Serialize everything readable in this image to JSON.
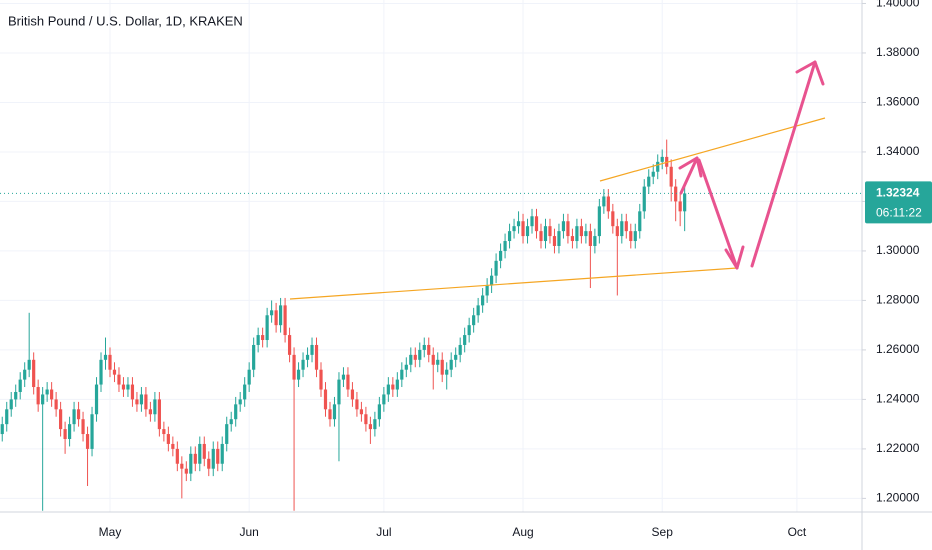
{
  "chart_data": {
    "type": "candlestick",
    "title": "British Pound / U.S. Dollar, 1D, KRAKEN",
    "countdown": "06:11:22",
    "up_color": "#26a69a",
    "down_color": "#ef5350",
    "grid": true,
    "ylim": [
      1.1945,
      1.4014
    ],
    "yticks": [
      {
        "value": 1.2,
        "label": "1.20000"
      },
      {
        "value": 1.22,
        "label": "1.22000"
      },
      {
        "value": 1.24,
        "label": "1.24000"
      },
      {
        "value": 1.26,
        "label": "1.26000"
      },
      {
        "value": 1.28,
        "label": "1.28000"
      },
      {
        "value": 1.3,
        "label": "1.30000"
      },
      {
        "value": 1.32,
        "label": "1.32000"
      },
      {
        "value": 1.34,
        "label": "1.34000"
      },
      {
        "value": 1.36,
        "label": "1.36000"
      },
      {
        "value": 1.38,
        "label": "1.38000"
      },
      {
        "value": 1.4,
        "label": "1.40000"
      }
    ],
    "categories": [
      null,
      null,
      null,
      null,
      null,
      null,
      null,
      null,
      null,
      null,
      null,
      null,
      null,
      null,
      null,
      null,
      null,
      null,
      null,
      null,
      null,
      null,
      null,
      null,
      "May",
      null,
      null,
      null,
      null,
      null,
      null,
      null,
      null,
      null,
      null,
      null,
      null,
      null,
      null,
      null,
      null,
      null,
      null,
      null,
      null,
      null,
      null,
      null,
      null,
      null,
      null,
      null,
      null,
      null,
      null,
      "Jun",
      null,
      null,
      null,
      null,
      null,
      null,
      null,
      null,
      null,
      null,
      null,
      null,
      null,
      null,
      null,
      null,
      null,
      null,
      null,
      null,
      null,
      null,
      null,
      null,
      null,
      null,
      null,
      null,
      null,
      "Jul",
      null,
      null,
      null,
      null,
      null,
      null,
      null,
      null,
      null,
      null,
      null,
      null,
      null,
      null,
      null,
      null,
      null,
      null,
      null,
      null,
      null,
      null,
      null,
      null,
      null,
      null,
      null,
      null,
      null,
      null,
      "Aug",
      null,
      null,
      null,
      null,
      null,
      null,
      null,
      null,
      null,
      null,
      null,
      null,
      null,
      null,
      null,
      null,
      null,
      null,
      null,
      null,
      null,
      null,
      null,
      null,
      null,
      null,
      null,
      null,
      null,
      null,
      "Sep",
      null,
      null,
      null,
      null,
      null,
      null,
      null,
      null,
      null,
      null,
      null,
      null,
      null,
      null,
      null,
      null,
      null,
      null,
      null,
      null,
      null,
      null,
      null,
      null,
      null,
      null,
      null,
      null,
      null,
      "Oct",
      null,
      null,
      null,
      null,
      null,
      null,
      null,
      null,
      null,
      null,
      null,
      null,
      null,
      null
    ],
    "open": [
      1.226,
      1.23,
      1.236,
      1.24,
      1.243,
      1.248,
      1.252,
      1.256,
      1.245,
      1.238,
      1.242,
      1.244,
      1.24,
      1.236,
      1.228,
      1.224,
      1.23,
      1.236,
      1.232,
      1.226,
      1.22,
      1.234,
      1.246,
      1.256,
      1.258,
      1.252,
      1.25,
      1.246,
      1.244,
      1.246,
      1.24,
      1.238,
      1.242,
      1.236,
      1.234,
      1.24,
      1.228,
      1.226,
      1.222,
      1.22,
      1.214,
      1.212,
      1.21,
      1.218,
      1.214,
      1.222,
      1.216,
      1.212,
      1.22,
      1.214,
      1.222,
      1.23,
      1.232,
      1.238,
      1.24,
      1.246,
      1.252,
      1.262,
      1.266,
      1.264,
      1.274,
      1.276,
      1.27,
      1.278,
      1.266,
      1.258,
      1.248,
      1.252,
      1.256,
      1.258,
      1.262,
      1.252,
      1.244,
      1.236,
      1.232,
      1.238,
      1.248,
      1.25,
      1.244,
      1.24,
      1.236,
      1.234,
      1.23,
      1.228,
      1.232,
      1.238,
      1.242,
      1.246,
      1.244,
      1.248,
      1.252,
      1.254,
      1.258,
      1.256,
      1.26,
      1.262,
      1.258,
      1.254,
      1.256,
      1.25,
      1.252,
      1.256,
      1.258,
      1.262,
      1.266,
      1.27,
      1.274,
      1.278,
      1.282,
      1.286,
      1.29,
      1.296,
      1.3,
      1.304,
      1.308,
      1.31,
      1.312,
      1.306,
      1.31,
      1.314,
      1.308,
      1.304,
      1.31,
      1.306,
      1.302,
      1.308,
      1.312,
      1.306,
      1.304,
      1.31,
      1.306,
      1.308,
      1.302,
      1.306,
      1.318,
      1.322,
      1.316,
      1.31,
      1.306,
      1.312,
      1.308,
      1.304,
      1.308,
      1.316,
      1.326,
      1.33,
      1.332,
      1.336,
      1.338,
      1.334,
      1.326,
      1.32,
      1.316,
      null,
      null,
      null,
      null,
      null,
      null,
      null,
      null,
      null,
      null,
      null,
      null,
      null,
      null,
      null,
      null,
      null,
      null,
      null,
      null,
      null,
      null,
      null,
      null,
      null,
      null,
      null,
      null,
      null,
      null,
      null,
      null,
      null,
      null,
      null,
      null,
      null,
      null,
      null
    ],
    "high": [
      1.233,
      1.239,
      1.243,
      1.246,
      1.251,
      1.255,
      1.275,
      1.259,
      1.248,
      1.245,
      1.247,
      1.247,
      1.243,
      1.239,
      1.231,
      1.233,
      1.239,
      1.239,
      1.235,
      1.229,
      1.237,
      1.249,
      1.259,
      1.265,
      1.261,
      1.255,
      1.253,
      1.249,
      1.249,
      1.249,
      1.243,
      1.245,
      1.245,
      1.239,
      1.243,
      1.243,
      1.231,
      1.229,
      1.225,
      1.223,
      1.217,
      1.215,
      1.221,
      1.221,
      1.225,
      1.225,
      1.219,
      1.223,
      1.223,
      1.225,
      1.233,
      1.235,
      1.241,
      1.243,
      1.249,
      1.255,
      1.265,
      1.269,
      1.269,
      1.277,
      1.28,
      1.279,
      1.281,
      1.281,
      1.269,
      1.261,
      1.255,
      1.259,
      1.261,
      1.265,
      1.265,
      1.255,
      1.247,
      1.239,
      1.241,
      1.251,
      1.253,
      1.253,
      1.247,
      1.243,
      1.239,
      1.237,
      1.233,
      1.235,
      1.241,
      1.245,
      1.249,
      1.249,
      1.251,
      1.255,
      1.257,
      1.261,
      1.261,
      1.263,
      1.265,
      1.265,
      1.261,
      1.259,
      1.259,
      1.255,
      1.259,
      1.261,
      1.265,
      1.269,
      1.273,
      1.277,
      1.281,
      1.285,
      1.289,
      1.293,
      1.299,
      1.303,
      1.307,
      1.311,
      1.313,
      1.316,
      1.315,
      1.313,
      1.317,
      1.317,
      1.311,
      1.313,
      1.313,
      1.309,
      1.311,
      1.315,
      1.315,
      1.309,
      1.313,
      1.313,
      1.311,
      1.311,
      1.309,
      1.321,
      1.325,
      1.325,
      1.319,
      1.313,
      1.315,
      1.315,
      1.311,
      1.311,
      1.319,
      1.329,
      1.333,
      1.335,
      1.339,
      1.341,
      1.345,
      1.337,
      1.329,
      1.323,
      1.326,
      null,
      null,
      null,
      null,
      null,
      null,
      null,
      null,
      null,
      null,
      null,
      null,
      null,
      null,
      null,
      null,
      null,
      null,
      null,
      null,
      null,
      null,
      null,
      null,
      null,
      null,
      null,
      null,
      null,
      null,
      null,
      null,
      null,
      null,
      null,
      null,
      null,
      null,
      null
    ],
    "low": [
      1.223,
      1.227,
      1.233,
      1.237,
      1.24,
      1.245,
      1.249,
      1.242,
      1.235,
      1.195,
      1.239,
      1.237,
      1.233,
      1.225,
      1.218,
      1.221,
      1.227,
      1.229,
      1.223,
      1.205,
      1.217,
      1.231,
      1.243,
      1.252,
      1.249,
      1.247,
      1.243,
      1.241,
      1.241,
      1.237,
      1.235,
      1.235,
      1.233,
      1.231,
      1.231,
      1.225,
      1.223,
      1.219,
      1.217,
      1.211,
      1.2,
      1.207,
      1.207,
      1.211,
      1.211,
      1.213,
      1.209,
      1.209,
      1.211,
      1.211,
      1.219,
      1.227,
      1.229,
      1.235,
      1.237,
      1.243,
      1.249,
      1.259,
      1.261,
      1.261,
      1.271,
      1.267,
      1.267,
      1.263,
      1.255,
      1.195,
      1.245,
      1.249,
      1.253,
      1.255,
      1.249,
      1.241,
      1.233,
      1.229,
      1.229,
      1.215,
      1.245,
      1.241,
      1.237,
      1.233,
      1.231,
      1.227,
      1.222,
      1.225,
      1.229,
      1.235,
      1.239,
      1.241,
      1.241,
      1.245,
      1.249,
      1.251,
      1.253,
      1.253,
      1.257,
      1.255,
      1.244,
      1.251,
      1.247,
      1.244,
      1.249,
      1.253,
      1.255,
      1.259,
      1.263,
      1.267,
      1.271,
      1.275,
      1.279,
      1.283,
      1.287,
      1.293,
      1.297,
      1.301,
      1.305,
      1.307,
      1.303,
      1.303,
      1.307,
      1.305,
      1.301,
      1.301,
      1.303,
      1.299,
      1.299,
      1.305,
      1.303,
      1.301,
      1.301,
      1.303,
      1.303,
      1.285,
      1.299,
      1.303,
      1.315,
      1.313,
      1.307,
      1.282,
      1.303,
      1.305,
      1.301,
      1.301,
      1.305,
      1.313,
      1.323,
      1.327,
      1.329,
      1.333,
      1.331,
      1.32,
      1.312,
      1.31,
      1.308,
      null,
      null,
      null,
      null,
      null,
      null,
      null,
      null,
      null,
      null,
      null,
      null,
      null,
      null,
      null,
      null,
      null,
      null,
      null,
      null,
      null,
      null,
      null,
      null,
      null,
      null,
      null,
      null,
      null,
      null,
      null,
      null,
      null,
      null,
      null,
      null,
      null,
      null,
      null
    ],
    "close": [
      1.23,
      1.236,
      1.24,
      1.243,
      1.248,
      1.252,
      1.256,
      1.245,
      1.238,
      1.242,
      1.244,
      1.24,
      1.236,
      1.228,
      1.224,
      1.23,
      1.236,
      1.232,
      1.226,
      1.22,
      1.234,
      1.246,
      1.256,
      1.258,
      1.252,
      1.25,
      1.246,
      1.244,
      1.246,
      1.24,
      1.238,
      1.242,
      1.236,
      1.234,
      1.24,
      1.228,
      1.226,
      1.222,
      1.22,
      1.214,
      1.212,
      1.21,
      1.218,
      1.214,
      1.222,
      1.216,
      1.212,
      1.22,
      1.214,
      1.222,
      1.23,
      1.232,
      1.238,
      1.24,
      1.246,
      1.252,
      1.262,
      1.266,
      1.264,
      1.274,
      1.276,
      1.27,
      1.278,
      1.266,
      1.258,
      1.248,
      1.252,
      1.256,
      1.258,
      1.262,
      1.252,
      1.244,
      1.236,
      1.232,
      1.238,
      1.248,
      1.25,
      1.244,
      1.24,
      1.236,
      1.234,
      1.23,
      1.228,
      1.232,
      1.238,
      1.242,
      1.246,
      1.244,
      1.248,
      1.252,
      1.254,
      1.258,
      1.256,
      1.26,
      1.262,
      1.258,
      1.254,
      1.256,
      1.25,
      1.252,
      1.256,
      1.258,
      1.262,
      1.266,
      1.27,
      1.274,
      1.278,
      1.282,
      1.286,
      1.29,
      1.296,
      1.3,
      1.304,
      1.308,
      1.31,
      1.312,
      1.306,
      1.31,
      1.314,
      1.308,
      1.304,
      1.31,
      1.306,
      1.302,
      1.308,
      1.312,
      1.306,
      1.304,
      1.31,
      1.306,
      1.308,
      1.302,
      1.306,
      1.318,
      1.322,
      1.316,
      1.31,
      1.306,
      1.312,
      1.308,
      1.304,
      1.308,
      1.316,
      1.326,
      1.33,
      1.332,
      1.336,
      1.338,
      1.334,
      1.326,
      1.32,
      1.316,
      1.32324,
      null,
      null,
      null,
      null,
      null,
      null,
      null,
      null,
      null,
      null,
      null,
      null,
      null,
      null,
      null,
      null,
      null,
      null,
      null,
      null,
      null,
      null,
      null,
      null,
      null,
      null,
      null,
      null,
      null,
      null,
      null,
      null,
      null,
      null,
      null,
      null,
      null,
      null,
      null
    ]
  }
}
